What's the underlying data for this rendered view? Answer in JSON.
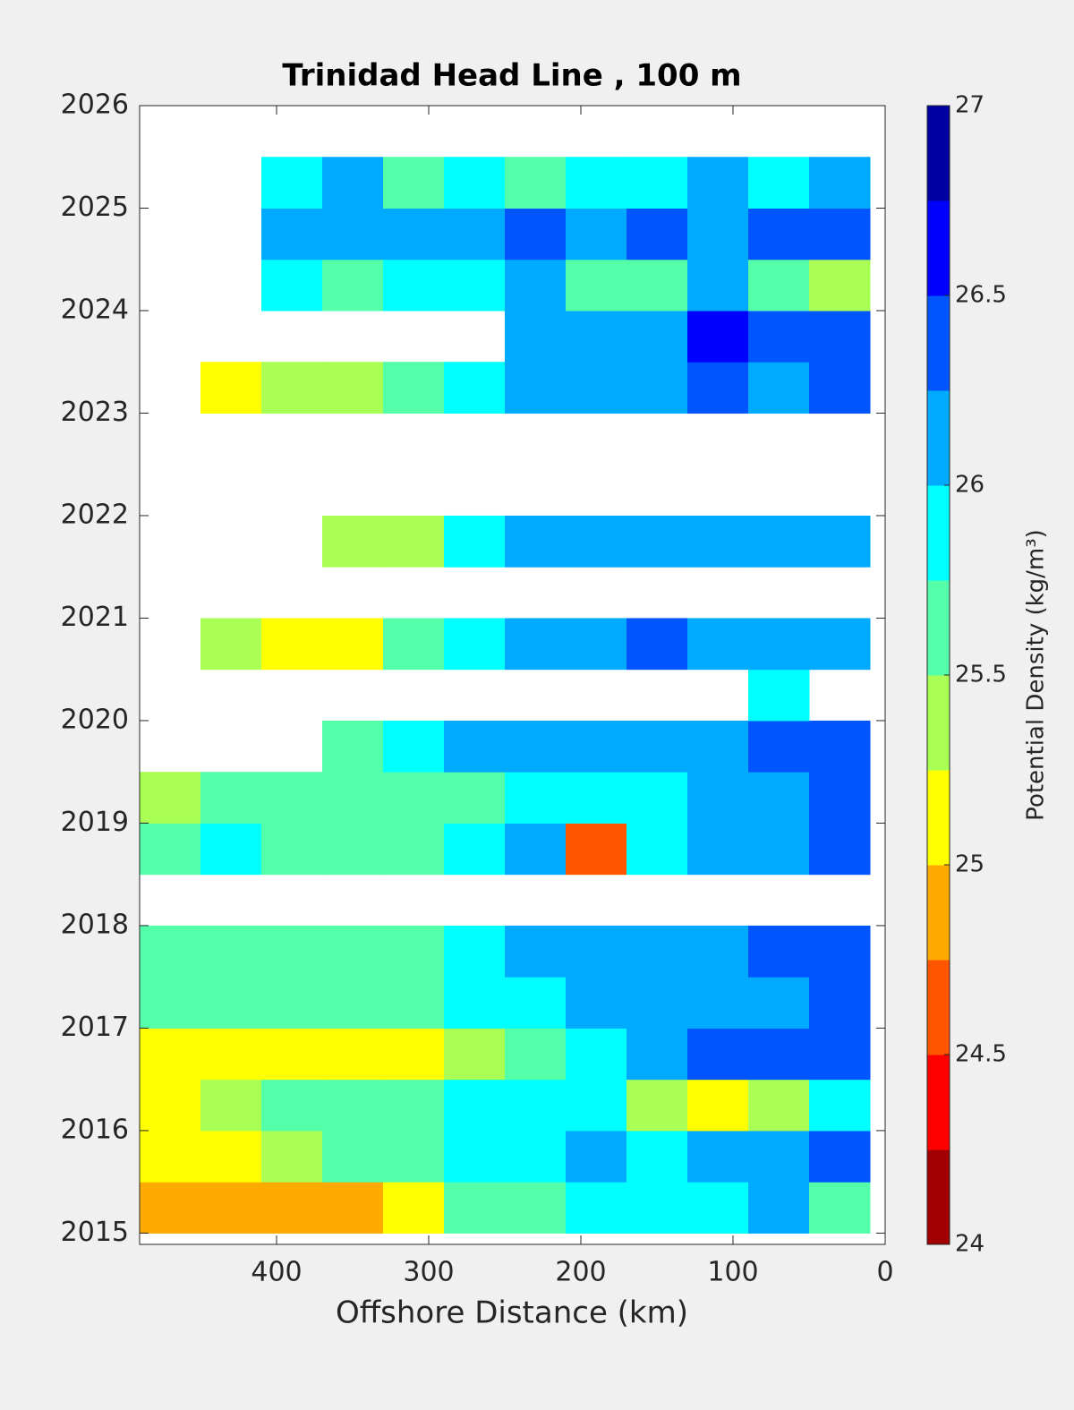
{
  "chart_data": {
    "type": "contour",
    "title": "Trinidad Head Line , 100 m",
    "xlabel": "Offshore Distance (km)",
    "colorbar_label": "Potential Density (kg/m³)",
    "xlim": [
      490,
      0
    ],
    "xticks": [
      400,
      300,
      200,
      100,
      0
    ],
    "ylim": [
      2014.89,
      2026
    ],
    "yticks": [
      2015,
      2016,
      2017,
      2018,
      2019,
      2020,
      2021,
      2022,
      2023,
      2024,
      2025,
      2026
    ],
    "clim": [
      24,
      27
    ],
    "cticks": [
      24,
      24.5,
      25,
      25.5,
      26,
      26.5,
      27
    ],
    "levels": [
      24,
      24.25,
      24.5,
      24.75,
      25,
      25.25,
      25.5,
      25.75,
      26,
      26.25,
      26.5,
      26.75,
      27
    ],
    "colors": [
      "#a00000",
      "#ff0000",
      "#ff5500",
      "#ffaa00",
      "#ffff00",
      "#aaff55",
      "#55ffaa",
      "#00ffff",
      "#00aaff",
      "#0055ff",
      "#0000ff",
      "#0000a0"
    ],
    "x": [
      470,
      430,
      390,
      350,
      310,
      270,
      230,
      190,
      150,
      110,
      70,
      30
    ],
    "y": [
      2015.25,
      2015.75,
      2016.25,
      2016.75,
      2017.25,
      2017.75,
      2018.25,
      2018.75,
      2019.25,
      2019.75,
      2020.25,
      2020.75,
      2021.25,
      2021.75,
      2022.25,
      2022.75,
      2023.25,
      2023.75,
      2024.25,
      2024.75,
      2025.25
    ],
    "z": [
      [
        24.9,
        24.9,
        24.9,
        24.9,
        25.2,
        25.6,
        25.7,
        25.8,
        25.8,
        25.9,
        26.0,
        25.7
      ],
      [
        25.1,
        25.2,
        25.4,
        25.6,
        25.7,
        25.8,
        25.9,
        26.0,
        25.9,
        26.1,
        26.2,
        26.4
      ],
      [
        25.1,
        25.4,
        25.6,
        25.5,
        25.7,
        25.8,
        25.9,
        25.9,
        25.4,
        25.1,
        25.4,
        25.9
      ],
      [
        25.2,
        25.1,
        25.2,
        25.1,
        25.1,
        25.4,
        25.6,
        25.8,
        26.0,
        26.3,
        26.3,
        26.3
      ],
      [
        25.6,
        25.6,
        25.7,
        25.6,
        25.7,
        25.8,
        25.9,
        26.1,
        26.0,
        26.1,
        26.2,
        26.3
      ],
      [
        25.6,
        25.5,
        25.5,
        25.6,
        25.7,
        25.9,
        26.0,
        26.0,
        26.1,
        26.2,
        26.3,
        26.4
      ],
      [
        null,
        null,
        null,
        null,
        null,
        null,
        null,
        null,
        null,
        null,
        null,
        null
      ],
      [
        25.6,
        25.8,
        25.5,
        25.7,
        25.5,
        25.9,
        26.0,
        24.6,
        25.9,
        26.0,
        26.2,
        26.4
      ],
      [
        25.4,
        25.5,
        25.6,
        25.5,
        25.6,
        25.7,
        25.8,
        25.9,
        25.9,
        26.0,
        26.1,
        26.3
      ],
      [
        null,
        null,
        null,
        25.7,
        25.9,
        26.1,
        26.0,
        26.1,
        26.1,
        26.2,
        26.3,
        26.4
      ],
      [
        null,
        null,
        null,
        null,
        null,
        null,
        null,
        null,
        null,
        null,
        25.9,
        null
      ],
      [
        null,
        25.3,
        25.1,
        25.2,
        25.6,
        25.8,
        26.1,
        26.2,
        26.3,
        26.1,
        26.1,
        26.1
      ],
      [
        null,
        null,
        null,
        null,
        null,
        null,
        null,
        null,
        null,
        null,
        null,
        null
      ],
      [
        null,
        null,
        null,
        25.3,
        25.4,
        25.8,
        26.1,
        26.1,
        26.1,
        26.1,
        26.1,
        26.1
      ],
      [
        null,
        null,
        null,
        null,
        null,
        null,
        null,
        null,
        null,
        null,
        null,
        null
      ],
      [
        null,
        null,
        null,
        null,
        null,
        null,
        null,
        null,
        null,
        null,
        null,
        null
      ],
      [
        null,
        25.1,
        25.3,
        25.4,
        25.5,
        25.8,
        26.1,
        26.2,
        26.1,
        26.3,
        26.2,
        26.3
      ],
      [
        null,
        null,
        null,
        null,
        null,
        null,
        26.0,
        26.1,
        26.2,
        26.6,
        26.4,
        26.3
      ],
      [
        null,
        null,
        25.9,
        25.7,
        25.8,
        25.9,
        26.0,
        25.6,
        25.6,
        26.0,
        25.5,
        25.3
      ],
      [
        null,
        null,
        26.0,
        26.2,
        26.1,
        26.2,
        26.3,
        26.1,
        26.3,
        26.1,
        26.3,
        26.3
      ],
      [
        null,
        null,
        25.8,
        26.0,
        25.7,
        25.8,
        25.7,
        25.8,
        25.9,
        26.0,
        25.9,
        26.0
      ]
    ],
    "cell_width": 40,
    "cell_height": 0.5,
    "grid": false
  }
}
